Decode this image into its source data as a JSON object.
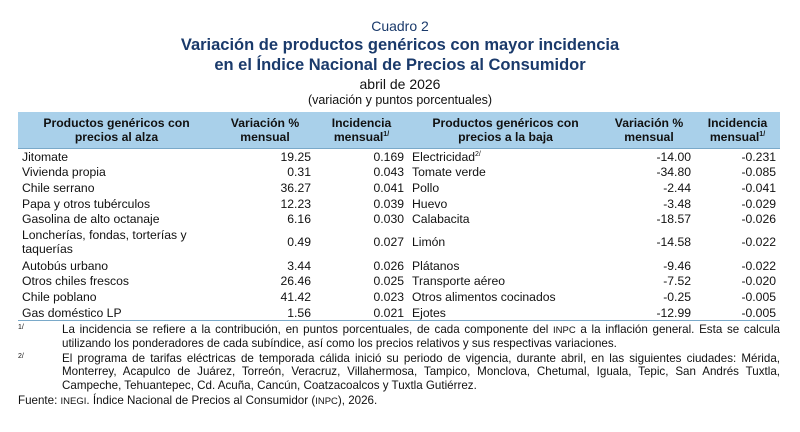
{
  "header": {
    "cuadro": "Cuadro 2",
    "title_line1": "Variación de productos genéricos con mayor incidencia",
    "title_line2": "en el Índice Nacional de Precios al Consumidor",
    "period": "abril de 2026",
    "units": "(variación y puntos porcentuales)"
  },
  "table": {
    "headers": {
      "alza_products": "Productos genéricos con precios al alza",
      "alza_variation": "Variación % mensual",
      "alza_incidence": "Incidencia mensual",
      "baja_products": "Productos genéricos con precios a la baja",
      "baja_variation": "Variación % mensual",
      "baja_incidence": "Incidencia mensual",
      "footnote_mark": "1/"
    },
    "rows": [
      {
        "up_name": "Jitomate",
        "up_var": "19.25",
        "up_inc": "0.169",
        "down_name": "Electricidad",
        "down_mark": "2/",
        "down_var": "-14.00",
        "down_inc": "-0.231"
      },
      {
        "up_name": "Vivienda propia",
        "up_var": "0.31",
        "up_inc": "0.043",
        "down_name": "Tomate verde",
        "down_mark": "",
        "down_var": "-34.80",
        "down_inc": "-0.085"
      },
      {
        "up_name": "Chile serrano",
        "up_var": "36.27",
        "up_inc": "0.041",
        "down_name": "Pollo",
        "down_mark": "",
        "down_var": "-2.44",
        "down_inc": "-0.041"
      },
      {
        "up_name": "Papa y otros tubérculos",
        "up_var": "12.23",
        "up_inc": "0.039",
        "down_name": "Huevo",
        "down_mark": "",
        "down_var": "-3.48",
        "down_inc": "-0.029"
      },
      {
        "up_name": "Gasolina de alto octanaje",
        "up_var": "6.16",
        "up_inc": "0.030",
        "down_name": "Calabacita",
        "down_mark": "",
        "down_var": "-18.57",
        "down_inc": "-0.026"
      },
      {
        "up_name": "Loncherías, fondas, torterías y taquerías",
        "up_var": "0.49",
        "up_inc": "0.027",
        "down_name": "Limón",
        "down_mark": "",
        "down_var": "-14.58",
        "down_inc": "-0.022"
      },
      {
        "up_name": "Autobús urbano",
        "up_var": "3.44",
        "up_inc": "0.026",
        "down_name": "Plátanos",
        "down_mark": "",
        "down_var": "-9.46",
        "down_inc": "-0.022"
      },
      {
        "up_name": "Otros chiles frescos",
        "up_var": "26.46",
        "up_inc": "0.025",
        "down_name": "Transporte aéreo",
        "down_mark": "",
        "down_var": "-7.52",
        "down_inc": "-0.020"
      },
      {
        "up_name": "Chile poblano",
        "up_var": "41.42",
        "up_inc": "0.023",
        "down_name": "Otros alimentos cocinados",
        "down_mark": "",
        "down_var": "-0.25",
        "down_inc": "-0.005"
      },
      {
        "up_name": "Gas doméstico LP",
        "up_var": "1.56",
        "up_inc": "0.021",
        "down_name": "Ejotes",
        "down_mark": "",
        "down_var": "-12.99",
        "down_inc": "-0.005"
      }
    ]
  },
  "notes": {
    "n1_mark": "1/",
    "n1_text_a": "La incidencia se refiere a la contribución, en puntos porcentuales, de cada componente del ",
    "n1_inpc": "INPC",
    "n1_text_b": " a la inflación general. Esta se calcula utilizando los ponderadores de cada subíndice, así como los precios relativos y sus respectivas variaciones.",
    "n2_mark": "2/",
    "n2_text": "El programa de tarifas eléctricas de temporada cálida inició su periodo de vigencia, durante abril, en las siguientes ciudades: Mérida, Monterrey, Acapulco de Juárez, Torreón, Veracruz, Villahermosa, Tampico, Monclova, Chetumal, Iguala, Tepic, San Andrés Tuxtla, Campeche, Tehuantepec, Cd. Acuña, Cancún, Coatzacoalcos y Tuxtla Gutiérrez.",
    "fuente_label": "Fuente: ",
    "fuente_inegi": "INEGI",
    "fuente_text_a": ". Índice Nacional de Precios al Consumidor (",
    "fuente_inpc": "INPC",
    "fuente_text_b": "), 2026."
  },
  "colors": {
    "header_band": "#a9d0ea",
    "title_blue": "#1a3a6b"
  }
}
